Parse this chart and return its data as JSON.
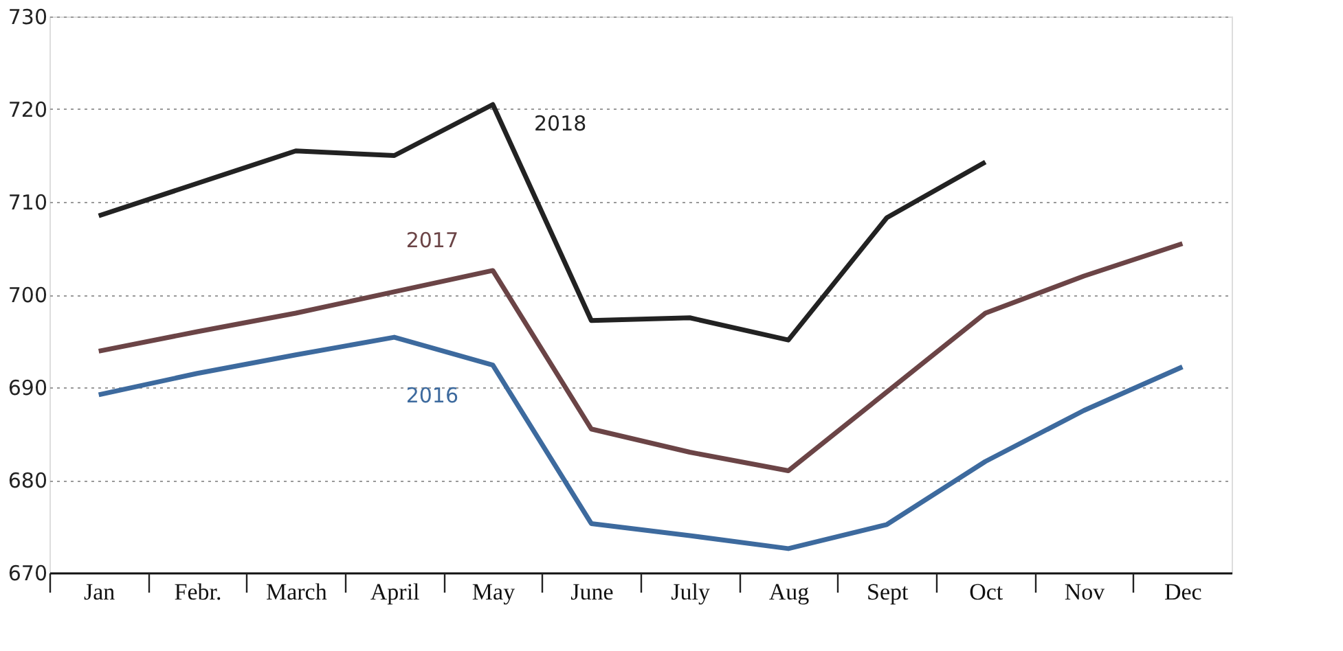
{
  "chart_data": {
    "type": "line",
    "categories": [
      "Jan",
      "Febr.",
      "March",
      "April",
      "May",
      "June",
      "July",
      "Aug",
      "Sept",
      "Oct",
      "Nov",
      "Dec"
    ],
    "series": [
      {
        "name": "2018",
        "color": "#222222",
        "values": [
          708.5,
          712,
          715.5,
          715,
          720.5,
          697.2,
          697.5,
          695.1,
          708.3,
          714.3,
          null,
          null
        ]
      },
      {
        "name": "2017",
        "color": "#6b4446",
        "values": [
          693.9,
          696,
          698,
          700.3,
          702.6,
          685.5,
          683,
          681,
          689.5,
          698,
          702,
          705.5
        ]
      },
      {
        "name": "2016",
        "color": "#3d6a9e",
        "values": [
          689.2,
          691.5,
          693.5,
          695.4,
          692.4,
          675.3,
          674,
          672.6,
          675.2,
          682,
          687.5,
          692.2
        ]
      }
    ],
    "ylim": [
      670,
      730
    ],
    "yticks": [
      670,
      680,
      690,
      700,
      710,
      720,
      730
    ],
    "grid": "y",
    "legend": false,
    "line_style": "solid",
    "marker": "none"
  }
}
